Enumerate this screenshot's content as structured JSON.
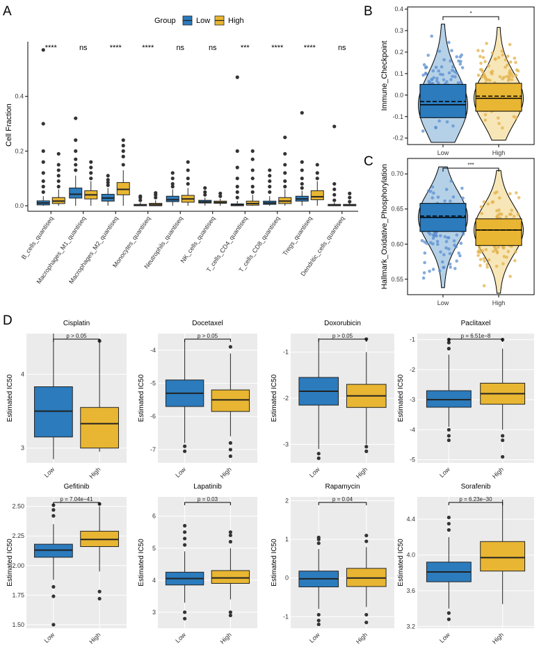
{
  "panel_labels": [
    "A",
    "B",
    "C",
    "D"
  ],
  "colors": {
    "low": "#2b7bbd",
    "high": "#e8b632",
    "outlier": "#333333",
    "grid_bg": "#ebebeb",
    "low_point": "#5b8fd0",
    "high_point": "#e3b24a"
  },
  "legend": {
    "title": "Group",
    "low": "Low",
    "high": "High"
  },
  "chart_data": [
    {
      "id": "A",
      "type": "box",
      "ylabel": "Cell Fraction",
      "yticks": [
        "0.0",
        "0.2",
        "0.4"
      ],
      "ylim": [
        -0.01,
        0.6
      ],
      "ytick_values": [
        0,
        0.2,
        0.4
      ],
      "categories": [
        "B_cells_quantiseq",
        "Macrophages_M1_quantiseq",
        "Macrophages_M2_quantiseq",
        "Monocytes_quantiseq",
        "Neutrophils_quantiseq",
        "NK_cells_quantiseq",
        "T_cells_CD4_quantiseq",
        "T_cells_CD8_quantiseq",
        "Tregs_quantiseq",
        "Dendritic_cells_quantiseq"
      ],
      "significance": [
        "****",
        "ns",
        "****",
        "****",
        "ns",
        "ns",
        "***",
        "****",
        "****",
        "ns"
      ],
      "low": [
        {
          "min": 0,
          "q1": 0.003,
          "med": 0.01,
          "q3": 0.018,
          "max": 0.035,
          "out": [
            0.05,
            0.07,
            0.09,
            0.12,
            0.16,
            0.2,
            0.3,
            0.57
          ]
        },
        {
          "min": 0,
          "q1": 0.028,
          "med": 0.042,
          "q3": 0.065,
          "max": 0.11,
          "out": [
            0.13,
            0.15,
            0.17,
            0.2,
            0.24,
            0.32
          ]
        },
        {
          "min": 0,
          "q1": 0.017,
          "med": 0.028,
          "q3": 0.042,
          "max": 0.065,
          "out": [
            0.075,
            0.085,
            0.095,
            0.11
          ]
        },
        {
          "min": 0,
          "q1": 0,
          "med": 0.002,
          "q3": 0.005,
          "max": 0.012,
          "out": [
            0.02,
            0.03,
            0.035
          ]
        },
        {
          "min": 0,
          "q1": 0.015,
          "med": 0.022,
          "q3": 0.035,
          "max": 0.06,
          "out": [
            0.07,
            0.08,
            0.1,
            0.12
          ]
        },
        {
          "min": 0,
          "q1": 0.01,
          "med": 0.014,
          "q3": 0.02,
          "max": 0.03,
          "out": [
            0.04,
            0.05,
            0.065
          ]
        },
        {
          "min": 0,
          "q1": 0,
          "med": 0.003,
          "q3": 0.007,
          "max": 0.018,
          "out": [
            0.03,
            0.05,
            0.07,
            0.1,
            0.14,
            0.2,
            0.47
          ]
        },
        {
          "min": 0,
          "q1": 0.005,
          "med": 0.01,
          "q3": 0.017,
          "max": 0.035,
          "out": [
            0.05,
            0.07,
            0.09,
            0.11,
            0.13
          ]
        },
        {
          "min": 0,
          "q1": 0.017,
          "med": 0.025,
          "q3": 0.035,
          "max": 0.055,
          "out": [
            0.065,
            0.08,
            0.1,
            0.13,
            0.16,
            0.34
          ]
        },
        {
          "min": 0,
          "q1": 0,
          "med": 0.002,
          "q3": 0.005,
          "max": 0.012,
          "out": [
            0.02,
            0.04,
            0.06,
            0.08,
            0.29
          ]
        }
      ],
      "high": [
        {
          "min": 0,
          "q1": 0.008,
          "med": 0.017,
          "q3": 0.03,
          "max": 0.06,
          "out": [
            0.07,
            0.09,
            0.11,
            0.13,
            0.15,
            0.19
          ]
        },
        {
          "min": 0,
          "q1": 0.025,
          "med": 0.04,
          "q3": 0.055,
          "max": 0.09,
          "out": [
            0.1,
            0.12,
            0.14,
            0.16
          ]
        },
        {
          "min": 0,
          "q1": 0.04,
          "med": 0.06,
          "q3": 0.085,
          "max": 0.13,
          "out": [
            0.15,
            0.18,
            0.2,
            0.22,
            0.24
          ]
        },
        {
          "min": 0,
          "q1": 0,
          "med": 0.004,
          "q3": 0.009,
          "max": 0.02,
          "out": [
            0.03,
            0.04,
            0.047
          ]
        },
        {
          "min": 0,
          "q1": 0.013,
          "med": 0.025,
          "q3": 0.038,
          "max": 0.065,
          "out": [
            0.08,
            0.1,
            0.13,
            0.16
          ]
        },
        {
          "min": 0,
          "q1": 0.009,
          "med": 0.012,
          "q3": 0.017,
          "max": 0.026,
          "out": [
            0.035,
            0.045
          ]
        },
        {
          "min": 0,
          "q1": 0.002,
          "med": 0.008,
          "q3": 0.017,
          "max": 0.04,
          "out": [
            0.05,
            0.07,
            0.1,
            0.13,
            0.17,
            0.2
          ]
        },
        {
          "min": 0,
          "q1": 0.008,
          "med": 0.017,
          "q3": 0.03,
          "max": 0.06,
          "out": [
            0.07,
            0.09,
            0.12,
            0.15,
            0.19,
            0.25
          ]
        },
        {
          "min": 0,
          "q1": 0.022,
          "med": 0.033,
          "q3": 0.055,
          "max": 0.09,
          "out": [
            0.1,
            0.12,
            0.15
          ]
        },
        {
          "min": 0,
          "q1": 0,
          "med": 0.002,
          "q3": 0.005,
          "max": 0.01,
          "out": [
            0.015,
            0.03,
            0.045
          ]
        }
      ]
    },
    {
      "id": "B",
      "type": "violin-box",
      "ylabel": "Immune_Checkpoint",
      "categories": [
        "Low",
        "High"
      ],
      "yticks": [
        "-0.2",
        "-0.1",
        "0.0",
        "0.1",
        "0.2",
        "0.3",
        "0.4"
      ],
      "ytick_values": [
        -0.2,
        -0.1,
        0,
        0.1,
        0.2,
        0.3,
        0.4
      ],
      "ylim": [
        -0.23,
        0.41
      ],
      "significance": "*",
      "groups": [
        {
          "name": "Low",
          "min": -0.22,
          "q1": -0.105,
          "med": -0.045,
          "q3": 0.05,
          "max": 0.33,
          "mean": -0.03
        },
        {
          "name": "High",
          "min": -0.21,
          "q1": -0.075,
          "med": -0.015,
          "q3": 0.055,
          "max": 0.315,
          "mean": -0.005
        }
      ]
    },
    {
      "id": "C",
      "type": "violin-box",
      "ylabel": "Hallmark_Oxidative_Phosphorylation",
      "categories": [
        "Low",
        "High"
      ],
      "yticks": [
        "0.55",
        "0.60",
        "0.65",
        "0.70"
      ],
      "ytick_values": [
        0.55,
        0.6,
        0.65,
        0.7
      ],
      "ylim": [
        0.528,
        0.722
      ],
      "significance": "***",
      "groups": [
        {
          "name": "Low",
          "min": 0.538,
          "q1": 0.618,
          "med": 0.638,
          "q3": 0.658,
          "max": 0.71,
          "mean": 0.64
        },
        {
          "name": "High",
          "min": 0.53,
          "q1": 0.598,
          "med": 0.62,
          "q3": 0.636,
          "max": 0.705,
          "mean": 0.62
        }
      ]
    },
    {
      "id": "D1",
      "type": "box",
      "title": "Cisplatin",
      "ylabel": "Estimated IC50",
      "categories": [
        "Low",
        "High"
      ],
      "pvalue": "p > 0.05",
      "yticks": [
        "3",
        "4"
      ],
      "ytick_values": [
        3,
        4
      ],
      "ylim": [
        2.8,
        4.55
      ],
      "groups": [
        {
          "min": 2.85,
          "q1": 3.15,
          "med": 3.5,
          "q3": 3.83,
          "max": 4.55,
          "out": []
        },
        {
          "min": 2.95,
          "q1": 3.0,
          "med": 3.33,
          "q3": 3.55,
          "max": 4.45,
          "out": [
            4.45
          ]
        }
      ]
    },
    {
      "id": "D2",
      "type": "box",
      "title": "Docetaxel",
      "ylabel": "Estimated IC50",
      "categories": [
        "Low",
        "High"
      ],
      "pvalue": "p > 0.05",
      "yticks": [
        "-7",
        "-6",
        "-5",
        "-4"
      ],
      "ytick_values": [
        -7,
        -6,
        -5,
        -4
      ],
      "ylim": [
        -7.4,
        -3.5
      ],
      "groups": [
        {
          "min": -6.8,
          "q1": -5.7,
          "med": -5.3,
          "q3": -4.9,
          "max": -3.7,
          "out": [
            -6.9,
            -7.05
          ]
        },
        {
          "min": -6.6,
          "q1": -5.85,
          "med": -5.5,
          "q3": -5.2,
          "max": -4.1,
          "out": [
            -3.9,
            -6.8,
            -7.0,
            -7.2
          ]
        }
      ]
    },
    {
      "id": "D3",
      "type": "box",
      "title": "Doxorubicin",
      "ylabel": "Estimated IC50",
      "categories": [
        "Low",
        "High"
      ],
      "pvalue": "p > 0.05",
      "yticks": [
        "-3",
        "-2",
        "-1"
      ],
      "ytick_values": [
        -3,
        -2,
        -1
      ],
      "ylim": [
        -3.4,
        -0.6
      ],
      "groups": [
        {
          "min": -3.1,
          "q1": -2.15,
          "med": -1.85,
          "q3": -1.55,
          "max": -0.7,
          "out": [
            -3.2,
            -3.3
          ]
        },
        {
          "min": -3.0,
          "q1": -2.2,
          "med": -1.95,
          "q3": -1.7,
          "max": -1.0,
          "out": [
            -0.72,
            -3.05,
            -3.15
          ]
        }
      ]
    },
    {
      "id": "D4",
      "type": "box",
      "title": "Paclitaxel",
      "ylabel": "Estimated IC50",
      "categories": [
        "Low",
        "High"
      ],
      "pvalue": "p = 6.51e−8",
      "yticks": [
        "-5",
        "-4",
        "-3",
        "-2",
        "-1"
      ],
      "ytick_values": [
        -5,
        -4,
        -3,
        -2,
        -1
      ],
      "ylim": [
        -5.1,
        -0.8
      ],
      "groups": [
        {
          "min": -3.9,
          "q1": -3.25,
          "med": -3.0,
          "q3": -2.7,
          "max": -1.5,
          "out": [
            -1.3,
            -1.1,
            -1.0,
            -4.0,
            -4.2,
            -4.35
          ]
        },
        {
          "min": -4.0,
          "q1": -3.15,
          "med": -2.8,
          "q3": -2.45,
          "max": -1.3,
          "out": [
            -1.0,
            -4.2,
            -4.35,
            -4.9
          ]
        }
      ]
    },
    {
      "id": "D5",
      "type": "box",
      "title": "Gefitinib",
      "ylabel": "Estimated IC50",
      "categories": [
        "Low",
        "High"
      ],
      "pvalue": "p = 7.04e−41",
      "yticks": [
        "1.50",
        "1.75",
        "2.00",
        "2.25",
        "2.50"
      ],
      "ytick_values": [
        1.5,
        1.75,
        2.0,
        2.25,
        2.5
      ],
      "ylim": [
        1.47,
        2.58
      ],
      "groups": [
        {
          "min": 1.88,
          "q1": 2.07,
          "med": 2.13,
          "q3": 2.18,
          "max": 2.35,
          "out": [
            2.42,
            2.47,
            2.51,
            1.82,
            1.74,
            1.5
          ]
        },
        {
          "min": 1.95,
          "q1": 2.16,
          "med": 2.22,
          "q3": 2.29,
          "max": 2.5,
          "out": [
            2.52,
            1.78,
            1.72
          ]
        }
      ]
    },
    {
      "id": "D6",
      "type": "box",
      "title": "Lapatinib",
      "ylabel": "Estimated IC50",
      "categories": [
        "Low",
        "High"
      ],
      "pvalue": "p = 0.03",
      "yticks": [
        "3",
        "4",
        "5",
        "6"
      ],
      "ytick_values": [
        3,
        4,
        5,
        6
      ],
      "ylim": [
        2.5,
        6.6
      ],
      "groups": [
        {
          "min": 3.3,
          "q1": 3.85,
          "med": 4.05,
          "q3": 4.25,
          "max": 4.9,
          "out": [
            5.1,
            5.3,
            5.5,
            5.7,
            3.0,
            2.8
          ]
        },
        {
          "min": 3.4,
          "q1": 3.9,
          "med": 4.07,
          "q3": 4.3,
          "max": 5.0,
          "out": [
            5.2,
            5.4,
            5.5,
            3.0,
            2.9
          ]
        }
      ]
    },
    {
      "id": "D7",
      "type": "box",
      "title": "Rapamycin",
      "ylabel": "Estimated IC50",
      "categories": [
        "Low",
        "High"
      ],
      "pvalue": "p = 0.04",
      "yticks": [
        "-1",
        "0",
        "1",
        "2"
      ],
      "ytick_values": [
        -1,
        0,
        1,
        2
      ],
      "ylim": [
        -1.3,
        2.1
      ],
      "groups": [
        {
          "min": -0.8,
          "q1": -0.23,
          "med": -0.02,
          "q3": 0.18,
          "max": 0.75,
          "out": [
            0.9,
            1.0,
            1.05,
            -0.95,
            -1.1,
            -1.2
          ]
        },
        {
          "min": -0.75,
          "q1": -0.22,
          "med": 0.0,
          "q3": 0.25,
          "max": 0.8,
          "out": [
            0.95,
            1.1,
            -0.95,
            -1.15
          ]
        }
      ]
    },
    {
      "id": "D8",
      "type": "box",
      "title": "Sorafenib",
      "ylabel": "Estimated IC50",
      "categories": [
        "Low",
        "High"
      ],
      "pvalue": "p = 6.23e−30",
      "yticks": [
        "3.2",
        "3.6",
        "4.0",
        "4.4"
      ],
      "ytick_values": [
        3.2,
        3.6,
        4.0,
        4.4
      ],
      "ylim": [
        3.18,
        4.65
      ],
      "groups": [
        {
          "min": 3.4,
          "q1": 3.7,
          "med": 3.81,
          "q3": 3.92,
          "max": 4.2,
          "out": [
            4.28,
            4.35,
            4.42,
            3.35,
            3.28
          ]
        },
        {
          "min": 3.45,
          "q1": 3.82,
          "med": 3.97,
          "q3": 4.15,
          "max": 4.62,
          "out": []
        }
      ]
    }
  ]
}
